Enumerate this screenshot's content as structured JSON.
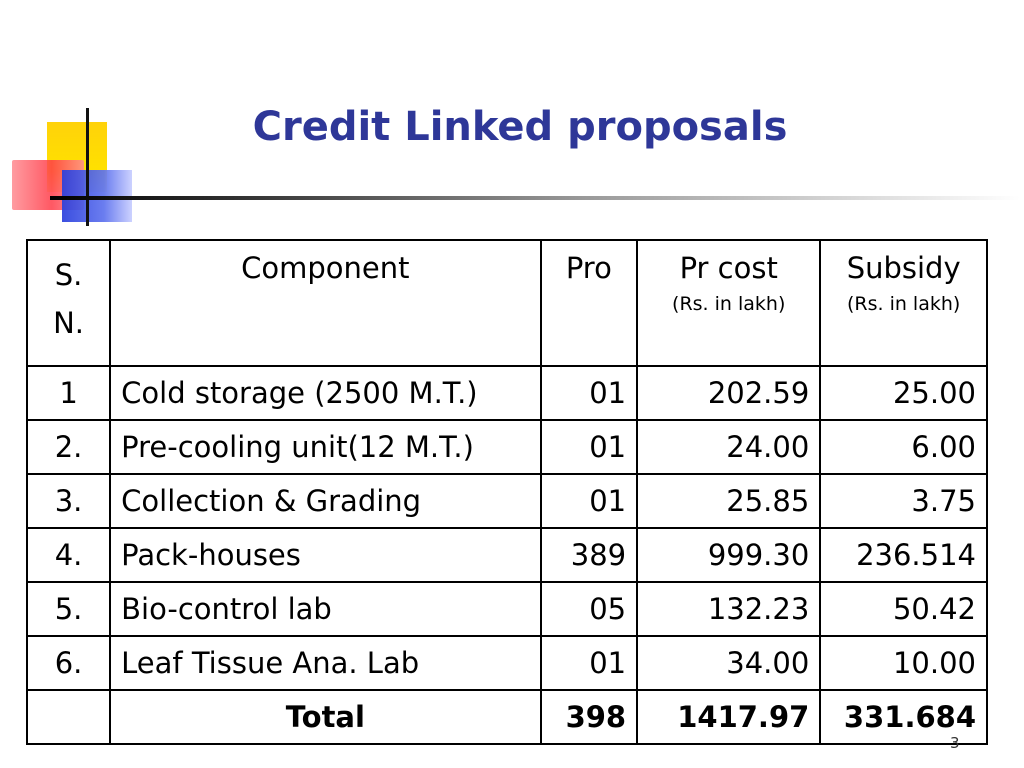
{
  "title": "Credit Linked proposals",
  "table": {
    "headers": {
      "sn_line1": "S.",
      "sn_line2": "N.",
      "component": "Component",
      "pro": "Pro",
      "cost": "Pr cost",
      "cost_unit": "(Rs. in lakh)",
      "subsidy": "Subsidy",
      "subsidy_unit": "(Rs. in lakh)"
    },
    "rows": [
      {
        "sn": "1",
        "component": "Cold storage (2500 M.T.)",
        "pro": "01",
        "cost": "202.59",
        "subsidy": "25.00"
      },
      {
        "sn": "2.",
        "component": "Pre-cooling unit(12 M.T.)",
        "pro": "01",
        "cost": "24.00",
        "subsidy": "6.00"
      },
      {
        "sn": "3.",
        "component": "Collection & Grading",
        "pro": "01",
        "cost": "25.85",
        "subsidy": "3.75"
      },
      {
        "sn": "4.",
        "component": "Pack-houses",
        "pro": "389",
        "cost": "999.30",
        "subsidy": "236.514"
      },
      {
        "sn": "5.",
        "component": "Bio-control lab",
        "pro": "05",
        "cost": "132.23",
        "subsidy": "50.42"
      },
      {
        "sn": "6.",
        "component": "Leaf Tissue Ana. Lab",
        "pro": "01",
        "cost": "34.00",
        "subsidy": "10.00"
      }
    ],
    "total": {
      "sn": "",
      "label": "Total",
      "pro": "398",
      "cost": "1417.97",
      "subsidy": "331.684"
    }
  },
  "page_number": "3",
  "colors": {
    "title": "#2e3798"
  }
}
